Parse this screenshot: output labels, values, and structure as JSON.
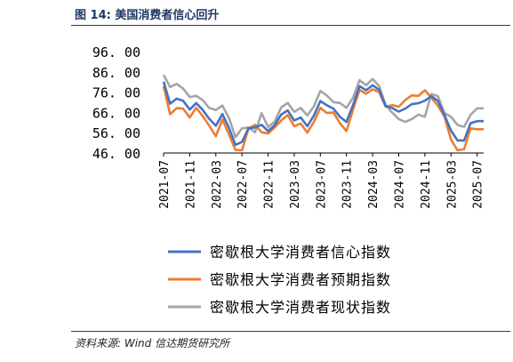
{
  "figure": {
    "title": "图 14:  美国消费者信心回升",
    "source": "资料来源:  Wind  信达期货研究所"
  },
  "chart_data": {
    "type": "line",
    "title": "",
    "xlabel": "",
    "ylabel": "",
    "ylim": [
      46,
      96
    ],
    "yticks": [
      "96. 00",
      "86. 00",
      "76. 00",
      "66. 00",
      "56. 00",
      "46. 00"
    ],
    "x_tick_labels": [
      "2021-07",
      "2021-11",
      "2022-03",
      "2022-07",
      "2022-11",
      "2023-03",
      "2023-07",
      "2023-11",
      "2024-03",
      "2024-07",
      "2024-11",
      "2025-03",
      "2025-07"
    ],
    "x": [
      "2021-07",
      "2021-08",
      "2021-09",
      "2021-10",
      "2021-11",
      "2021-12",
      "2022-01",
      "2022-02",
      "2022-03",
      "2022-04",
      "2022-05",
      "2022-06",
      "2022-07",
      "2022-08",
      "2022-09",
      "2022-10",
      "2022-11",
      "2022-12",
      "2023-01",
      "2023-02",
      "2023-03",
      "2023-04",
      "2023-05",
      "2023-06",
      "2023-07",
      "2023-08",
      "2023-09",
      "2023-10",
      "2023-11",
      "2023-12",
      "2024-01",
      "2024-02",
      "2024-03",
      "2024-04",
      "2024-05",
      "2024-06",
      "2024-07",
      "2024-08",
      "2024-09",
      "2024-10",
      "2024-11",
      "2024-12",
      "2025-01",
      "2025-02",
      "2025-03",
      "2025-04",
      "2025-05",
      "2025-06",
      "2025-07",
      "2025-08"
    ],
    "grid": false,
    "legend_position": "bottom",
    "series": [
      {
        "name": "密歇根大学消费者信心指数",
        "color": "#4472c4",
        "values": [
          81.2,
          70.3,
          72.8,
          71.7,
          67.4,
          70.6,
          67.2,
          62.8,
          59.4,
          65.2,
          58.4,
          50.0,
          51.5,
          58.2,
          58.6,
          59.9,
          56.8,
          59.7,
          64.9,
          67.0,
          62.0,
          63.5,
          59.2,
          64.4,
          71.6,
          69.5,
          67.9,
          63.8,
          61.3,
          69.7,
          79.0,
          76.9,
          79.4,
          77.2,
          69.1,
          68.2,
          66.4,
          67.9,
          70.1,
          70.5,
          71.8,
          74.0,
          71.7,
          64.7,
          57.0,
          52.2,
          52.2,
          60.7,
          61.7,
          61.7
        ]
      },
      {
        "name": "密歇根大学消费者预期指数",
        "color": "#ed7d31",
        "values": [
          79.0,
          65.1,
          68.1,
          67.9,
          63.5,
          68.3,
          64.1,
          59.4,
          54.3,
          62.5,
          55.2,
          47.5,
          47.3,
          58.0,
          59.9,
          56.2,
          55.6,
          58.6,
          62.0,
          64.7,
          59.2,
          60.5,
          56.0,
          61.3,
          68.3,
          65.7,
          66.0,
          60.7,
          56.8,
          67.4,
          77.1,
          75.2,
          77.4,
          76.0,
          68.8,
          69.6,
          68.8,
          72.1,
          74.4,
          74.1,
          76.9,
          73.3,
          69.3,
          64.0,
          52.6,
          47.3,
          47.9,
          58.1,
          57.7,
          57.7
        ]
      },
      {
        "name": "密歇根大学消费者现状指数",
        "color": "#a5a5a5",
        "values": [
          84.5,
          78.5,
          80.1,
          77.7,
          73.6,
          74.2,
          72.0,
          68.2,
          67.2,
          69.4,
          63.3,
          53.8,
          58.1,
          58.6,
          56.2,
          65.6,
          58.8,
          61.4,
          68.4,
          70.7,
          66.3,
          68.2,
          64.5,
          69.0,
          76.6,
          74.3,
          71.1,
          70.6,
          68.3,
          73.3,
          81.9,
          79.4,
          82.5,
          79.0,
          69.6,
          65.9,
          62.7,
          61.3,
          62.7,
          64.9,
          63.9,
          75.1,
          74.0,
          65.7,
          63.8,
          59.8,
          58.9,
          64.8,
          68.0,
          68.0
        ]
      }
    ]
  }
}
